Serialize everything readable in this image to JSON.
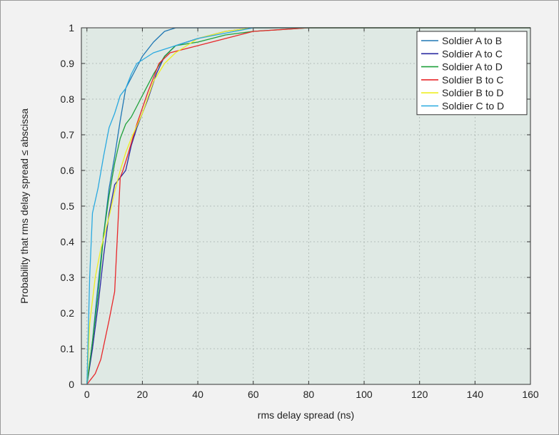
{
  "chart_data": {
    "type": "line",
    "xlabel": "rms delay spread (ns)",
    "ylabel": "Probability that rms delay spread ≤ abscissa",
    "xlim": [
      -2,
      160
    ],
    "ylim": [
      0,
      1
    ],
    "xticks": [
      0,
      20,
      40,
      60,
      80,
      100,
      120,
      140,
      160
    ],
    "yticks": [
      0,
      0.1,
      0.2,
      0.3,
      0.4,
      0.5,
      0.6,
      0.7,
      0.8,
      0.9,
      1
    ],
    "grid": true,
    "legend_position": "top-right",
    "plot_background": "#dfe9e4",
    "series": [
      {
        "name": "Soldier A to B",
        "color": "#1f77b4",
        "x": [
          0,
          2,
          4,
          6,
          8,
          10,
          12,
          14,
          16,
          18,
          20,
          24,
          28,
          32,
          40,
          60,
          160
        ],
        "y": [
          0,
          0.12,
          0.28,
          0.42,
          0.55,
          0.64,
          0.74,
          0.83,
          0.86,
          0.89,
          0.92,
          0.96,
          0.99,
          1.0,
          1.0,
          1.0,
          1.0
        ]
      },
      {
        "name": "Soldier A to C",
        "color": "#2a2aa0",
        "x": [
          0,
          2,
          4,
          6,
          8,
          10,
          12,
          14,
          16,
          18,
          20,
          22,
          25,
          28,
          32,
          40,
          50,
          60,
          80,
          160
        ],
        "y": [
          0,
          0.1,
          0.22,
          0.36,
          0.48,
          0.56,
          0.58,
          0.6,
          0.67,
          0.72,
          0.76,
          0.8,
          0.87,
          0.92,
          0.95,
          0.97,
          0.99,
          1.0,
          1.0,
          1.0
        ]
      },
      {
        "name": "Soldier A to D",
        "color": "#1ea03a",
        "x": [
          0,
          2,
          4,
          6,
          8,
          10,
          12,
          14,
          16,
          18,
          20,
          24,
          28,
          32,
          40,
          50,
          60,
          80,
          160
        ],
        "y": [
          0,
          0.12,
          0.25,
          0.42,
          0.53,
          0.62,
          0.69,
          0.73,
          0.75,
          0.78,
          0.81,
          0.87,
          0.92,
          0.95,
          0.96,
          0.98,
          0.99,
          1.0,
          1.0
        ]
      },
      {
        "name": "Soldier B to C",
        "color": "#e8272a",
        "x": [
          0,
          3,
          5,
          8,
          10,
          11,
          12,
          13,
          15,
          18,
          22,
          26,
          30,
          35,
          40,
          45,
          50,
          60,
          80,
          160
        ],
        "y": [
          0,
          0.03,
          0.07,
          0.18,
          0.26,
          0.42,
          0.58,
          0.6,
          0.65,
          0.73,
          0.82,
          0.9,
          0.93,
          0.94,
          0.95,
          0.96,
          0.97,
          0.99,
          1.0,
          1.0
        ]
      },
      {
        "name": "Soldier B to D",
        "color": "#eeee22",
        "x": [
          0,
          1,
          3,
          5,
          8,
          10,
          12,
          14,
          16,
          20,
          24,
          28,
          32,
          40,
          50,
          60,
          80,
          160
        ],
        "y": [
          0,
          0.17,
          0.3,
          0.38,
          0.47,
          0.54,
          0.6,
          0.65,
          0.69,
          0.76,
          0.85,
          0.9,
          0.93,
          0.97,
          0.99,
          1.0,
          1.0,
          1.0
        ]
      },
      {
        "name": "Soldier C to D",
        "color": "#29a9e0",
        "x": [
          0,
          1,
          2,
          4,
          6,
          8,
          10,
          12,
          14,
          16,
          18,
          20,
          24,
          28,
          32,
          40,
          60,
          160
        ],
        "y": [
          0,
          0.3,
          0.48,
          0.55,
          0.64,
          0.72,
          0.76,
          0.81,
          0.83,
          0.87,
          0.9,
          0.91,
          0.93,
          0.94,
          0.95,
          0.97,
          1.0,
          1.0
        ]
      }
    ]
  }
}
